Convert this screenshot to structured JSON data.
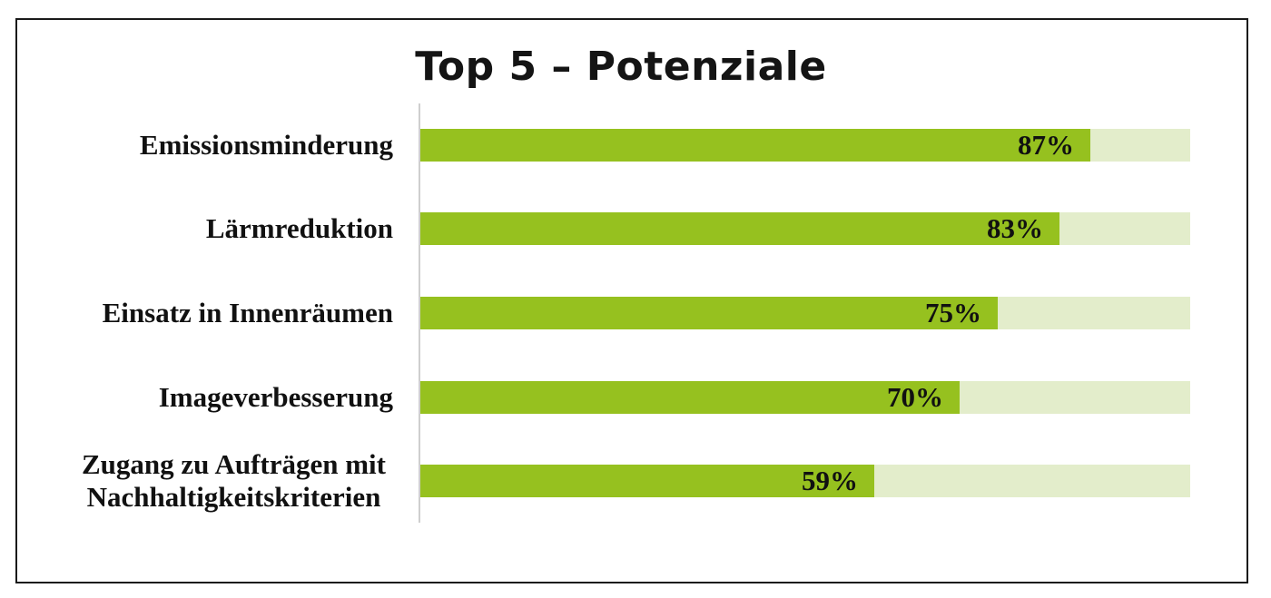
{
  "chart_data": {
    "type": "bar",
    "orientation": "horizontal",
    "title": "Top 5 – Potenziale",
    "categories": [
      "Emissionsminderung",
      "Lärmreduktion",
      "Einsatz in Innenräumen",
      "Imageverbesserung",
      "Zugang zu Aufträgen mit Nachhaltigkeitskriterien"
    ],
    "category_lines": [
      [
        "Emissionsminderung"
      ],
      [
        "Lärmreduktion"
      ],
      [
        "Einsatz in Innenräumen"
      ],
      [
        "Imageverbesserung"
      ],
      [
        "Zugang zu Aufträgen mit",
        "Nachhaltigkeitskriterien"
      ]
    ],
    "values": [
      87,
      83,
      75,
      70,
      59
    ],
    "value_labels": [
      "87%",
      "83%",
      "75%",
      "70%",
      "59%"
    ],
    "xlim": [
      0,
      100
    ],
    "unit": "%",
    "grid": false,
    "legend": "none",
    "colors": {
      "bar": "#96c11f",
      "track": "#e3edcb",
      "text": "#111111"
    }
  }
}
